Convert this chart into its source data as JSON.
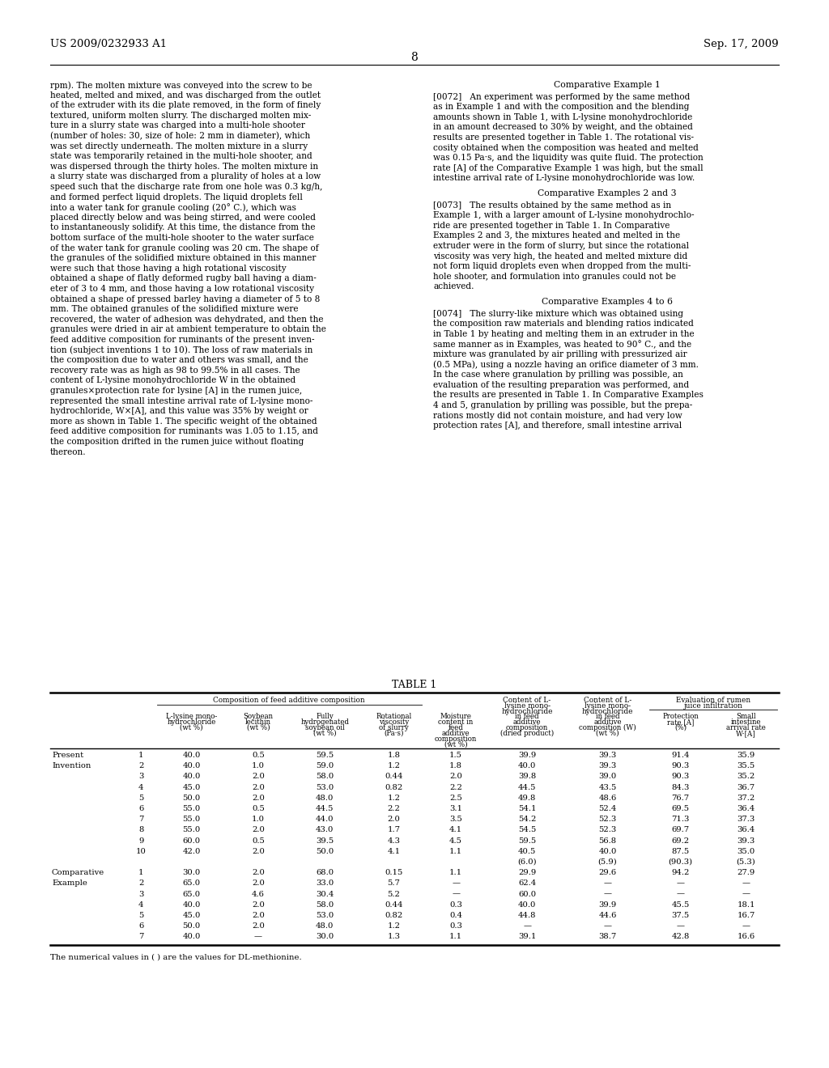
{
  "bg_color": "#ffffff",
  "header_left": "US 2009/0232933 A1",
  "header_right": "Sep. 17, 2009",
  "page_number": "8",
  "left_col_lines": [
    "rpm). The molten mixture was conveyed into the screw to be",
    "heated, melted and mixed, and was discharged from the outlet",
    "of the extruder with its die plate removed, in the form of finely",
    "textured, uniform molten slurry. The discharged molten mix-",
    "ture in a slurry state was charged into a multi-hole shooter",
    "(number of holes: 30, size of hole: 2 mm in diameter), which",
    "was set directly underneath. The molten mixture in a slurry",
    "state was temporarily retained in the multi-hole shooter, and",
    "was dispersed through the thirty holes. The molten mixture in",
    "a slurry state was discharged from a plurality of holes at a low",
    "speed such that the discharge rate from one hole was 0.3 kg/h,",
    "and formed perfect liquid droplets. The liquid droplets fell",
    "into a water tank for granule cooling (20° C.), which was",
    "placed directly below and was being stirred, and were cooled",
    "to instantaneously solidify. At this time, the distance from the",
    "bottom surface of the multi-hole shooter to the water surface",
    "of the water tank for granule cooling was 20 cm. The shape of",
    "the granules of the solidified mixture obtained in this manner",
    "were such that those having a high rotational viscosity",
    "obtained a shape of flatly deformed rugby ball having a diam-",
    "eter of 3 to 4 mm, and those having a low rotational viscosity",
    "obtained a shape of pressed barley having a diameter of 5 to 8",
    "mm. The obtained granules of the solidified mixture were",
    "recovered, the water of adhesion was dehydrated, and then the",
    "granules were dried in air at ambient temperature to obtain the",
    "feed additive composition for ruminants of the present inven-",
    "tion (subject inventions 1 to 10). The loss of raw materials in",
    "the composition due to water and others was small, and the",
    "recovery rate was as high as 98 to 99.5% in all cases. The",
    "content of L-lysine monohydrochloride W in the obtained",
    "granules×protection rate for lysine [A] in the rumen juice,",
    "represented the small intestine arrival rate of L-lysine mono-",
    "hydrochloride, W×[A], and this value was 35% by weight or",
    "more as shown in Table 1. The specific weight of the obtained",
    "feed additive composition for ruminants was 1.05 to 1.15, and",
    "the composition drifted in the rumen juice without floating",
    "thereon."
  ],
  "right_col_sections": [
    {
      "type": "heading",
      "text": "Comparative Example 1"
    },
    {
      "type": "para",
      "lines": [
        "[0072]   An experiment was performed by the same method",
        "as in Example 1 and with the composition and the blending",
        "amounts shown in Table 1, with L-lysine monohydrochloride",
        "in an amount decreased to 30% by weight, and the obtained",
        "results are presented together in Table 1. The rotational vis-",
        "cosity obtained when the composition was heated and melted",
        "was 0.15 Pa·s, and the liquidity was quite fluid. The protection",
        "rate [A] of the Comparative Example 1 was high, but the small",
        "intestine arrival rate of L-lysine monohydrochloride was low."
      ]
    },
    {
      "type": "heading",
      "text": "Comparative Examples 2 and 3"
    },
    {
      "type": "para",
      "lines": [
        "[0073]   The results obtained by the same method as in",
        "Example 1, with a larger amount of L-lysine monohydrochlo-",
        "ride are presented together in Table 1. In Comparative",
        "Examples 2 and 3, the mixtures heated and melted in the",
        "extruder were in the form of slurry, but since the rotational",
        "viscosity was very high, the heated and melted mixture did",
        "not form liquid droplets even when dropped from the multi-",
        "hole shooter, and formulation into granules could not be",
        "achieved."
      ]
    },
    {
      "type": "heading",
      "text": "Comparative Examples 4 to 6"
    },
    {
      "type": "para",
      "lines": [
        "[0074]   The slurry-like mixture which was obtained using",
        "the composition raw materials and blending ratios indicated",
        "in Table 1 by heating and melting them in an extruder in the",
        "same manner as in Examples, was heated to 90° C., and the",
        "mixture was granulated by air prilling with pressurized air",
        "(0.5 MPa), using a nozzle having an orifice diameter of 3 mm.",
        "In the case where granulation by prilling was possible, an",
        "evaluation of the resulting preparation was performed, and",
        "the results are presented in Table 1. In Comparative Examples",
        "4 and 5, granulation by prilling was possible, but the prepa-",
        "rations mostly did not contain moisture, and had very low",
        "protection rates [A], and therefore, small intestine arrival"
      ]
    }
  ],
  "table_title": "TABLE 1",
  "table_rows": [
    [
      "Present",
      "1",
      "40.0",
      "0.5",
      "59.5",
      "1.8",
      "1.5",
      "39.9",
      "39.3",
      "91.4",
      "35.9"
    ],
    [
      "Invention",
      "2",
      "40.0",
      "1.0",
      "59.0",
      "1.2",
      "1.8",
      "40.0",
      "39.3",
      "90.3",
      "35.5"
    ],
    [
      "",
      "3",
      "40.0",
      "2.0",
      "58.0",
      "0.44",
      "2.0",
      "39.8",
      "39.0",
      "90.3",
      "35.2"
    ],
    [
      "",
      "4",
      "45.0",
      "2.0",
      "53.0",
      "0.82",
      "2.2",
      "44.5",
      "43.5",
      "84.3",
      "36.7"
    ],
    [
      "",
      "5",
      "50.0",
      "2.0",
      "48.0",
      "1.2",
      "2.5",
      "49.8",
      "48.6",
      "76.7",
      "37.2"
    ],
    [
      "",
      "6",
      "55.0",
      "0.5",
      "44.5",
      "2.2",
      "3.1",
      "54.1",
      "52.4",
      "69.5",
      "36.4"
    ],
    [
      "",
      "7",
      "55.0",
      "1.0",
      "44.0",
      "2.0",
      "3.5",
      "54.2",
      "52.3",
      "71.3",
      "37.3"
    ],
    [
      "",
      "8",
      "55.0",
      "2.0",
      "43.0",
      "1.7",
      "4.1",
      "54.5",
      "52.3",
      "69.7",
      "36.4"
    ],
    [
      "",
      "9",
      "60.0",
      "0.5",
      "39.5",
      "4.3",
      "4.5",
      "59.5",
      "56.8",
      "69.2",
      "39.3"
    ],
    [
      "",
      "10",
      "42.0",
      "2.0",
      "50.0",
      "4.1",
      "1.1",
      "40.5",
      "40.0",
      "87.5",
      "35.0"
    ],
    [
      "",
      "",
      "",
      "",
      "",
      "",
      "",
      "(6.0)",
      "(5.9)",
      "(90.3)",
      "(5.3)"
    ],
    [
      "Comparative",
      "1",
      "30.0",
      "2.0",
      "68.0",
      "0.15",
      "1.1",
      "29.9",
      "29.6",
      "94.2",
      "27.9"
    ],
    [
      "Example",
      "2",
      "65.0",
      "2.0",
      "33.0",
      "5.7",
      "—",
      "62.4",
      "—",
      "—",
      "—"
    ],
    [
      "",
      "3",
      "65.0",
      "4.6",
      "30.4",
      "5.2",
      "—",
      "60.0",
      "—",
      "—",
      "—"
    ],
    [
      "",
      "4",
      "40.0",
      "2.0",
      "58.0",
      "0.44",
      "0.3",
      "40.0",
      "39.9",
      "45.5",
      "18.1"
    ],
    [
      "",
      "5",
      "45.0",
      "2.0",
      "53.0",
      "0.82",
      "0.4",
      "44.8",
      "44.6",
      "37.5",
      "16.7"
    ],
    [
      "",
      "6",
      "50.0",
      "2.0",
      "48.0",
      "1.2",
      "0.3",
      "—",
      "—",
      "—",
      "—"
    ],
    [
      "",
      "7",
      "40.0",
      "—",
      "30.0",
      "1.3",
      "1.1",
      "39.1",
      "38.7",
      "42.8",
      "16.6"
    ]
  ],
  "table_footnote": "The numerical values in ( ) are the values for DL-methionine."
}
